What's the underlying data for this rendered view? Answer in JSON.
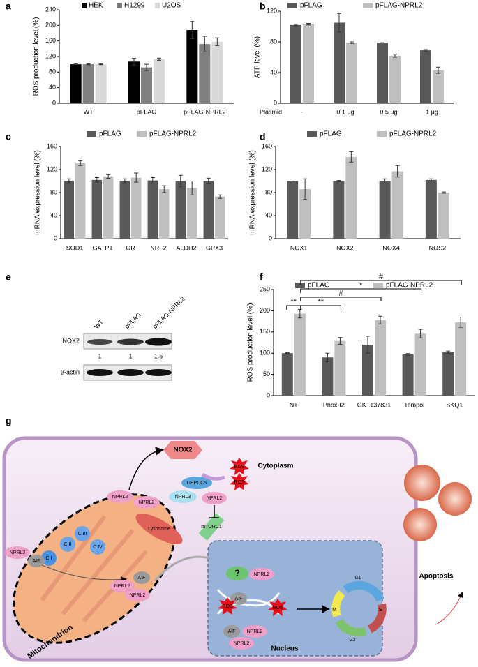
{
  "chart_data": [
    {
      "panel": "a",
      "type": "bar",
      "ylabel": "ROS production level (%)",
      "categories": [
        "WT",
        "pFLAG",
        "pFLAG-NPRL2"
      ],
      "series": [
        {
          "name": "HEK",
          "color": "#000000",
          "values": [
            100,
            107,
            188
          ],
          "errors": [
            1,
            8,
            22
          ]
        },
        {
          "name": "H1299",
          "color": "#808080",
          "values": [
            100,
            92,
            152
          ],
          "errors": [
            1,
            8,
            20
          ]
        },
        {
          "name": "U2OS",
          "color": "#d9d9d9",
          "values": [
            100,
            113,
            158
          ],
          "errors": [
            1,
            3,
            10
          ]
        }
      ],
      "ylim": [
        0,
        240
      ],
      "yticks": [
        0,
        40,
        80,
        120,
        160,
        200,
        240
      ]
    },
    {
      "panel": "b",
      "type": "bar",
      "ylabel": "ATP level (%)",
      "xlabel": "Plasmid",
      "categories": [
        "-",
        "0.1 μg",
        "0.5 μg",
        "1 μg"
      ],
      "series": [
        {
          "name": "pFLAG",
          "color": "#595959",
          "values": [
            102,
            105,
            79,
            69
          ],
          "errors": [
            1,
            12,
            0,
            1
          ]
        },
        {
          "name": "pFLAG-NPRL2",
          "color": "#bfbfbf",
          "values": [
            103,
            79,
            62,
            43
          ],
          "errors": [
            1,
            1,
            2,
            4
          ]
        }
      ],
      "ylim": [
        0,
        120
      ],
      "yticks": [
        0,
        40,
        80,
        120
      ]
    },
    {
      "panel": "c",
      "type": "bar",
      "ylabel": "mRNA expression level (%)",
      "categories": [
        "SOD1",
        "GATP1",
        "GR",
        "NRF2",
        "ALDH2",
        "GPX3"
      ],
      "series": [
        {
          "name": "pFLAG",
          "color": "#595959",
          "values": [
            100,
            102,
            100,
            101,
            100,
            100
          ],
          "errors": [
            4,
            4,
            4,
            5,
            10,
            5
          ]
        },
        {
          "name": "pFLAG-NPRL2",
          "color": "#bfbfbf",
          "values": [
            131,
            108,
            106,
            86,
            88,
            73
          ],
          "errors": [
            4,
            3,
            8,
            6,
            12,
            3
          ]
        }
      ],
      "ylim": [
        0,
        160
      ],
      "yticks": [
        0,
        40,
        80,
        120,
        160
      ]
    },
    {
      "panel": "d",
      "type": "bar",
      "ylabel": "mRNA expression level (%)",
      "categories": [
        "NOX1",
        "NOX2",
        "NOX4",
        "NOS2"
      ],
      "series": [
        {
          "name": "pFLAG",
          "color": "#595959",
          "values": [
            100,
            100,
            100,
            102
          ],
          "errors": [
            0,
            1,
            4,
            2
          ]
        },
        {
          "name": "pFLAG-NPRL2",
          "color": "#bfbfbf",
          "values": [
            86,
            142,
            117,
            80
          ],
          "errors": [
            18,
            9,
            10,
            1
          ]
        }
      ],
      "ylim": [
        0,
        160
      ],
      "yticks": [
        0,
        40,
        80,
        120,
        160
      ]
    },
    {
      "panel": "f",
      "type": "bar",
      "ylabel": "ROS production level (%)",
      "categories": [
        "NT",
        "Phox-I2",
        "GKT137831",
        "Tempol",
        "SKQ1"
      ],
      "series": [
        {
          "name": "pFLAG",
          "color": "#595959",
          "values": [
            100,
            90,
            120,
            97,
            102
          ],
          "errors": [
            1,
            10,
            20,
            2,
            3
          ]
        },
        {
          "name": "pFLAG-NPRL2",
          "color": "#bfbfbf",
          "values": [
            193,
            129,
            178,
            146,
            173
          ],
          "errors": [
            10,
            8,
            9,
            10,
            12
          ]
        }
      ],
      "ylim": [
        0,
        250
      ],
      "yticks": [
        0,
        50,
        100,
        150,
        200,
        250
      ],
      "annotations": [
        "**",
        "**",
        "#",
        "*",
        "#"
      ]
    }
  ],
  "blot": {
    "panel": "e",
    "lanes": [
      "WT",
      "pFLAG",
      "pFLAG-NPRL2"
    ],
    "rows": [
      "NOX2",
      "β-actin"
    ],
    "ratios": [
      "1",
      "1",
      "1.5"
    ]
  },
  "diagram": {
    "panel": "g",
    "labels": [
      "NOX2",
      "Cytoplasm",
      "NPRL2",
      "NPRL2",
      "NPRL3",
      "DEPDC5",
      "NPRL2",
      "Lysosome",
      "mTORC1",
      "ROS",
      "ROS",
      "C I",
      "C II",
      "C III",
      "C IV",
      "NPRL2",
      "AIF",
      "AIF",
      "NPRL2",
      "NPRL2",
      "Mitochondrion",
      "?",
      "NPRL2",
      "AIF",
      "ROS",
      "ROS",
      "AIF",
      "NPRL2",
      "NPRL2",
      "G1",
      "S",
      "G2",
      "M",
      "Nucleus",
      "Apoptosis"
    ]
  }
}
